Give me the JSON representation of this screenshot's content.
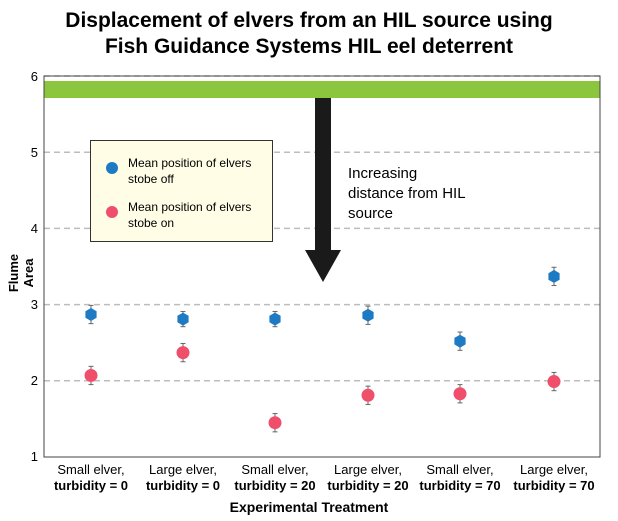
{
  "chart_data": {
    "type": "scatter",
    "title_line1": "Displacement of elvers from an HIL source using",
    "title_line2": "Fish Guidance Systems HIL eel deterrent",
    "xlabel": "Experimental Treatment",
    "ylabel": "Flume Area",
    "ylim": [
      1,
      6
    ],
    "yticks": [
      "1",
      "2",
      "3",
      "4",
      "5",
      "6"
    ],
    "categories": [
      {
        "line1": "Small elver,",
        "line2": "turbidity = 0"
      },
      {
        "line1": "Large elver,",
        "line2": "turbidity = 0"
      },
      {
        "line1": "Small elver,",
        "line2": "turbidity = 20"
      },
      {
        "line1": "Large elver,",
        "line2": "turbidity = 20"
      },
      {
        "line1": "Small elver,",
        "line2": "turbidity = 70"
      },
      {
        "line1": "Large elver,",
        "line2": "turbidity = 70"
      }
    ],
    "series": [
      {
        "name": "Mean position of elvers stobe off",
        "color": "#1f7ac4",
        "marker": "hexagon",
        "values": [
          2.87,
          2.81,
          2.81,
          2.86,
          2.52,
          3.37
        ],
        "errors": [
          0.12,
          0.1,
          0.1,
          0.12,
          0.12,
          0.12
        ]
      },
      {
        "name": "Mean position of elvers stobe on",
        "color": "#ef4f6b",
        "marker": "circle",
        "values": [
          2.07,
          2.37,
          1.45,
          1.81,
          1.83,
          1.99
        ],
        "errors": [
          0.12,
          0.12,
          0.12,
          0.12,
          0.12,
          0.12
        ]
      }
    ],
    "source_band_color": "#8cc63f",
    "annotation": [
      "Increasing",
      "distance from HIL",
      "source"
    ],
    "legend_position": "top-left"
  }
}
